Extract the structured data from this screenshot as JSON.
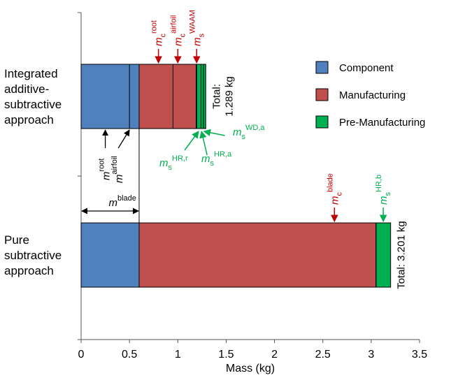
{
  "chart_data": {
    "type": "bar",
    "orientation": "horizontal",
    "stacked": true,
    "xlabel": "Mass (kg)",
    "xlim": [
      0,
      3.5
    ],
    "xticks": [
      "0",
      "0.5",
      "1",
      "1.5",
      "2",
      "2.5",
      "3",
      "3.5"
    ],
    "grid": false,
    "legend_position": "top-right",
    "colors": {
      "component": "#4F81BD",
      "manufacturing": "#C0504D",
      "premanufacturing": "#00B050",
      "annotation_red": "#C00000",
      "annotation_green": "#00B050"
    },
    "categories": [
      "Integrated additive-subtractive approach",
      "Pure subtractive approach"
    ],
    "category_lines": [
      [
        "Integrated",
        "additive-",
        "subtractive",
        "approach"
      ],
      [
        "Pure",
        "subtractive",
        "approach"
      ]
    ],
    "series": [
      {
        "name": "Component",
        "key": "component",
        "values": [
          0.6,
          0.6
        ]
      },
      {
        "name": "Manufacturing",
        "key": "manufacturing",
        "values": [
          0.59,
          2.45
        ]
      },
      {
        "name": "Pre-Manufacturing",
        "key": "premanufacturing",
        "values": [
          0.099,
          0.151
        ]
      }
    ],
    "segment_dividers": [
      [
        0.5,
        0.95,
        1.195,
        1.24,
        1.265
      ],
      [
        3.05
      ]
    ],
    "totals": [
      "Total: 1.289 kg",
      "Total: 3.201 kg"
    ],
    "totals_lines": [
      [
        "Total:",
        "1.289 kg"
      ],
      [
        "Total: 3.201 kg"
      ]
    ],
    "annotations_top": [
      {
        "base": "m",
        "sub": "c",
        "sup": "root",
        "x": 0.8,
        "bar": 0,
        "color": "red"
      },
      {
        "base": "m",
        "sub": "c",
        "sup": "airfoil",
        "x": 1.0,
        "bar": 0,
        "color": "red"
      },
      {
        "base": "m",
        "sub": "s",
        "sup": "WAAM",
        "x": 1.195,
        "bar": 0,
        "color": "red"
      },
      {
        "base": "m",
        "sub": "c",
        "sup": "blade",
        "x": 2.62,
        "bar": 1,
        "color": "red"
      },
      {
        "base": "m",
        "sub": "s",
        "sup": "HR,b",
        "x": 3.125,
        "bar": 1,
        "color": "green"
      }
    ],
    "annotations_bottom": [
      {
        "base": "m",
        "sub": "s",
        "sup": "HR,r",
        "x": 1.215,
        "color": "green"
      },
      {
        "base": "m",
        "sub": "s",
        "sup": "HR,a",
        "x": 1.245,
        "color": "green"
      },
      {
        "base": "m",
        "sub": "s",
        "sup": "WD,a",
        "x": 1.27,
        "color": "green"
      }
    ],
    "annotations_black": [
      {
        "base": "m",
        "sup": "root",
        "x": 0.25
      },
      {
        "base": "m",
        "sup": "airfoil",
        "x": 0.5
      },
      {
        "base": "m",
        "sup": "blade",
        "from": 0,
        "to": 0.6
      }
    ]
  }
}
